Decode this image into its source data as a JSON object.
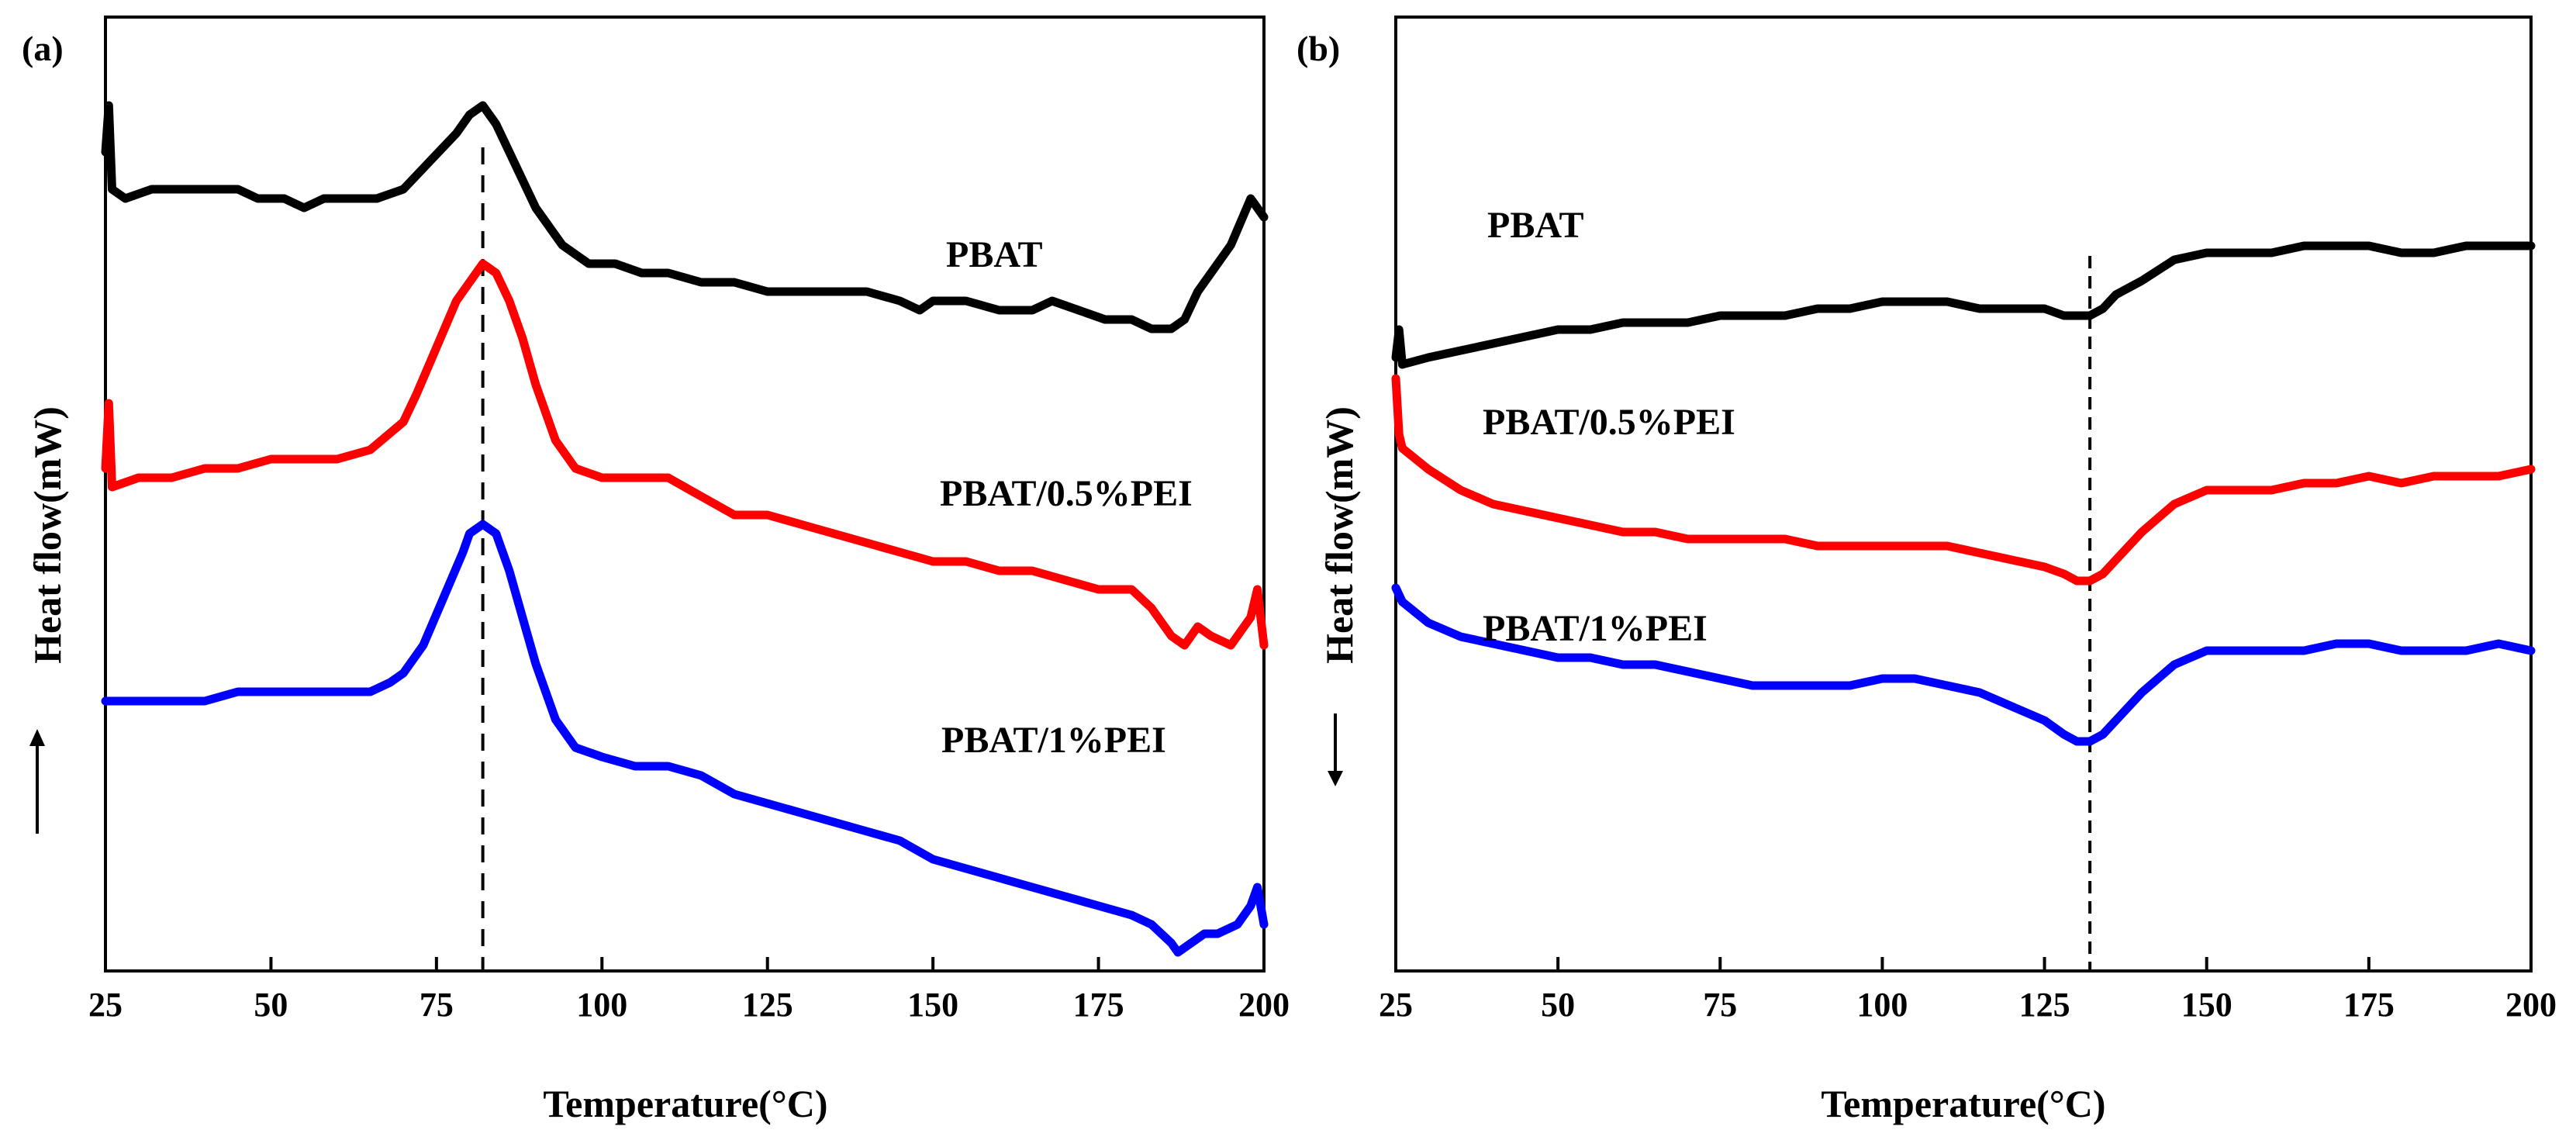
{
  "chart_data": [
    {
      "type": "line",
      "panel_label": "(a)",
      "xlabel": "Temperature(°C)",
      "ylabel": "Heat flow(mW)",
      "ylabel_arrow": "up",
      "xlim": [
        25,
        200
      ],
      "xticks": [
        25,
        50,
        75,
        100,
        125,
        150,
        175,
        200
      ],
      "y_units": "arbitrary (curves vertically offset, no y tick labels)",
      "ylim": [
        0,
        100
      ],
      "reference_line": {
        "x": 82,
        "style": "dashed"
      },
      "series": [
        {
          "name": "PBAT",
          "color": "#000000",
          "x": [
            25,
            25.5,
            26,
            28,
            32,
            36,
            40,
            45,
            48,
            52,
            55,
            58,
            62,
            66,
            70,
            74,
            78,
            80,
            82,
            84,
            86,
            90,
            94,
            98,
            102,
            106,
            110,
            115,
            120,
            125,
            130,
            135,
            140,
            145,
            148,
            150,
            155,
            160,
            165,
            168,
            172,
            176,
            180,
            183,
            186,
            188,
            190,
            192,
            195,
            198,
            200
          ],
          "y": [
            87,
            92,
            83,
            82,
            83,
            83,
            83,
            83,
            82,
            82,
            81,
            82,
            82,
            82,
            83,
            86,
            89,
            91,
            92,
            90,
            87,
            81,
            77,
            75,
            75,
            74,
            74,
            73,
            73,
            72,
            72,
            72,
            72,
            71,
            70,
            71,
            71,
            70,
            70,
            71,
            70,
            69,
            69,
            68,
            68,
            69,
            72,
            74,
            77,
            82,
            80
          ]
        },
        {
          "name": "PBAT/0.5%PEI",
          "color": "#ff0000",
          "x": [
            25,
            25.5,
            26,
            30,
            35,
            40,
            45,
            50,
            55,
            60,
            65,
            70,
            72,
            75,
            78,
            80,
            82,
            84,
            86,
            88,
            90,
            93,
            96,
            100,
            105,
            110,
            115,
            120,
            125,
            130,
            135,
            140,
            145,
            150,
            155,
            160,
            165,
            170,
            175,
            180,
            183,
            186,
            188,
            190,
            192,
            195,
            198,
            199,
            200
          ],
          "y": [
            53,
            60,
            51,
            52,
            52,
            53,
            53,
            54,
            54,
            54,
            55,
            58,
            61,
            66,
            71,
            73,
            75,
            74,
            71,
            67,
            62,
            56,
            53,
            52,
            52,
            52,
            50,
            48,
            48,
            47,
            46,
            45,
            44,
            43,
            43,
            42,
            42,
            41,
            40,
            40,
            38,
            35,
            34,
            36,
            35,
            34,
            37,
            40,
            34
          ]
        },
        {
          "name": "PBAT/1%PEI",
          "color": "#0000ff",
          "x": [
            25,
            30,
            35,
            40,
            45,
            50,
            55,
            60,
            65,
            68,
            70,
            73,
            76,
            79,
            80,
            82,
            84,
            86,
            88,
            90,
            93,
            96,
            100,
            105,
            110,
            115,
            120,
            125,
            130,
            135,
            140,
            145,
            150,
            155,
            160,
            165,
            170,
            175,
            180,
            183,
            186,
            187,
            189,
            191,
            193,
            196,
            198,
            199,
            200
          ],
          "y": [
            28,
            28,
            28,
            28,
            29,
            29,
            29,
            29,
            29,
            30,
            31,
            34,
            39,
            44,
            46,
            47,
            46,
            42,
            37,
            32,
            26,
            23,
            22,
            21,
            21,
            20,
            18,
            17,
            16,
            15,
            14,
            13,
            11,
            10,
            9,
            8,
            7,
            6,
            5,
            4,
            2,
            1,
            2,
            3,
            3,
            4,
            6,
            8,
            4
          ]
        }
      ],
      "series_labels": [
        "PBAT",
        "PBAT/0.5%PEI",
        "PBAT/1%PEI"
      ]
    },
    {
      "type": "line",
      "panel_label": "(b)",
      "xlabel": "Temperature(°C)",
      "ylabel": "Heat flow(mW)",
      "ylabel_arrow": "down",
      "xlim": [
        25,
        200
      ],
      "xticks": [
        25,
        50,
        75,
        100,
        125,
        150,
        175,
        200
      ],
      "y_units": "arbitrary (curves vertically offset, no y tick labels)",
      "ylim": [
        0,
        100
      ],
      "reference_line": {
        "x": 132,
        "style": "dashed"
      },
      "series": [
        {
          "name": "PBAT",
          "color": "#000000",
          "x": [
            25,
            25.5,
            26,
            30,
            35,
            40,
            45,
            50,
            55,
            60,
            65,
            70,
            75,
            80,
            85,
            90,
            95,
            100,
            105,
            110,
            115,
            120,
            125,
            128,
            130,
            132,
            134,
            136,
            140,
            145,
            150,
            155,
            160,
            165,
            170,
            175,
            180,
            185,
            190,
            195,
            200
          ],
          "y": [
            71,
            75,
            70,
            71,
            72,
            73,
            74,
            75,
            75,
            76,
            76,
            76,
            77,
            77,
            77,
            78,
            78,
            79,
            79,
            79,
            78,
            78,
            78,
            77,
            77,
            77,
            78,
            80,
            82,
            85,
            86,
            86,
            86,
            87,
            87,
            87,
            86,
            86,
            87,
            87,
            87
          ]
        },
        {
          "name": "PBAT/0.5%PEI",
          "color": "#ff0000",
          "x": [
            25,
            25.5,
            26,
            30,
            35,
            40,
            45,
            50,
            55,
            60,
            65,
            70,
            75,
            80,
            85,
            90,
            95,
            100,
            105,
            110,
            115,
            120,
            125,
            128,
            130,
            132,
            134,
            136,
            140,
            145,
            150,
            155,
            160,
            165,
            170,
            175,
            180,
            185,
            190,
            195,
            200
          ],
          "y": [
            68,
            60,
            58,
            55,
            52,
            50,
            49,
            48,
            47,
            46,
            46,
            45,
            45,
            45,
            45,
            44,
            44,
            44,
            44,
            44,
            43,
            42,
            41,
            40,
            39,
            39,
            40,
            42,
            46,
            50,
            52,
            52,
            52,
            53,
            53,
            54,
            53,
            54,
            54,
            54,
            55
          ]
        },
        {
          "name": "PBAT/1%PEI",
          "color": "#0000ff",
          "x": [
            25,
            26,
            30,
            35,
            40,
            45,
            50,
            55,
            60,
            65,
            70,
            75,
            80,
            85,
            90,
            95,
            100,
            105,
            110,
            115,
            120,
            125,
            128,
            130,
            132,
            134,
            136,
            140,
            145,
            150,
            155,
            160,
            165,
            170,
            175,
            180,
            185,
            190,
            195,
            200
          ],
          "y": [
            38,
            36,
            33,
            31,
            30,
            29,
            28,
            28,
            27,
            27,
            26,
            25,
            24,
            24,
            24,
            24,
            25,
            25,
            24,
            23,
            21,
            19,
            17,
            16,
            16,
            17,
            19,
            23,
            27,
            29,
            29,
            29,
            29,
            30,
            30,
            29,
            29,
            29,
            30,
            29
          ]
        }
      ],
      "series_labels": [
        "PBAT",
        "PBAT/0.5%PEI",
        "PBAT/1%PEI"
      ]
    }
  ]
}
